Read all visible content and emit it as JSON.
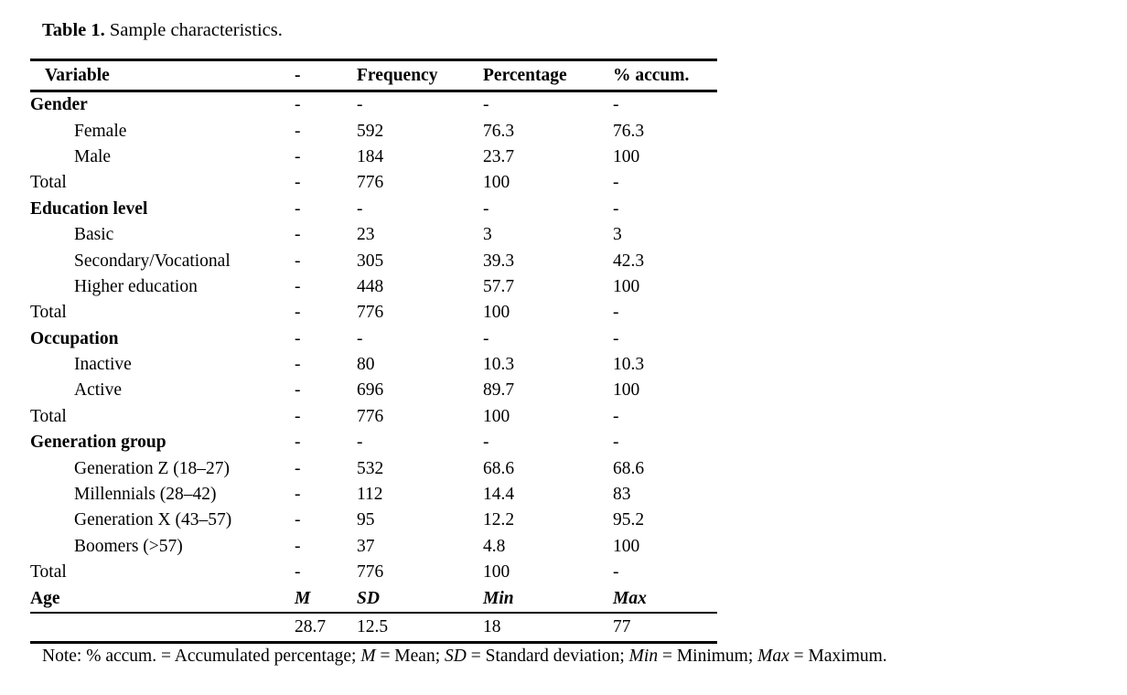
{
  "caption": {
    "label": "Table 1.",
    "text": " Sample characteristics."
  },
  "table": {
    "columns": [
      "Variable",
      "-",
      "Frequency",
      "Percentage",
      "% accum."
    ],
    "rows": [
      {
        "label": "Gender",
        "bold": true,
        "indent": false,
        "cells": [
          "-",
          "-",
          "-",
          "-"
        ]
      },
      {
        "label": "Female",
        "bold": false,
        "indent": true,
        "cells": [
          "-",
          "592",
          "76.3",
          "76.3"
        ]
      },
      {
        "label": "Male",
        "bold": false,
        "indent": true,
        "cells": [
          "-",
          "184",
          "23.7",
          "100"
        ]
      },
      {
        "label": "Total",
        "bold": false,
        "indent": false,
        "cells": [
          "-",
          "776",
          "100",
          "-"
        ]
      },
      {
        "label": "Education level",
        "bold": true,
        "indent": false,
        "cells": [
          "-",
          "-",
          "-",
          "-"
        ]
      },
      {
        "label": "Basic",
        "bold": false,
        "indent": true,
        "cells": [
          "-",
          "23",
          "3",
          "3"
        ]
      },
      {
        "label": "Secondary/Vocational",
        "bold": false,
        "indent": true,
        "cells": [
          "-",
          "305",
          "39.3",
          "42.3"
        ]
      },
      {
        "label": "Higher education",
        "bold": false,
        "indent": true,
        "cells": [
          "-",
          "448",
          "57.7",
          "100"
        ]
      },
      {
        "label": "Total",
        "bold": false,
        "indent": false,
        "cells": [
          "-",
          "776",
          "100",
          "-"
        ]
      },
      {
        "label": "Occupation",
        "bold": true,
        "indent": false,
        "cells": [
          "-",
          "-",
          "-",
          "-"
        ]
      },
      {
        "label": "Inactive",
        "bold": false,
        "indent": true,
        "cells": [
          "-",
          "80",
          "10.3",
          "10.3"
        ]
      },
      {
        "label": "Active",
        "bold": false,
        "indent": true,
        "cells": [
          "-",
          "696",
          "89.7",
          "100"
        ]
      },
      {
        "label": "Total",
        "bold": false,
        "indent": false,
        "cells": [
          "-",
          "776",
          "100",
          "-"
        ]
      },
      {
        "label": "Generation group",
        "bold": true,
        "indent": false,
        "cells": [
          "-",
          "-",
          "-",
          "-"
        ]
      },
      {
        "label": "Generation Z (18–27)",
        "bold": false,
        "indent": true,
        "cells": [
          "-",
          "532",
          "68.6",
          "68.6"
        ]
      },
      {
        "label": "Millennials (28–42)",
        "bold": false,
        "indent": true,
        "cells": [
          "-",
          "112",
          "14.4",
          "83"
        ]
      },
      {
        "label": "Generation X (43–57)",
        "bold": false,
        "indent": true,
        "cells": [
          "-",
          "95",
          "12.2",
          "95.2"
        ]
      },
      {
        "label": "Boomers (>57)",
        "bold": false,
        "indent": true,
        "cells": [
          "-",
          "37",
          "4.8",
          "100"
        ]
      },
      {
        "label": "Total",
        "bold": false,
        "indent": false,
        "cells": [
          "-",
          "776",
          "100",
          "-"
        ]
      },
      {
        "label": "Age",
        "bold": true,
        "indent": false,
        "cells": [
          "M",
          "SD",
          "Min",
          "Max"
        ],
        "cell_style": "stat-header",
        "row_class": "age-row"
      },
      {
        "label": "",
        "bold": false,
        "indent": false,
        "cells": [
          "28.7",
          "12.5",
          "18",
          "77"
        ],
        "row_class": "values-row"
      }
    ]
  },
  "note": {
    "segments": [
      {
        "text": "Note: % accum. = Accumulated percentage; ",
        "italic": false
      },
      {
        "text": "M",
        "italic": true
      },
      {
        "text": " = Mean; ",
        "italic": false
      },
      {
        "text": "SD",
        "italic": true
      },
      {
        "text": " = Standard deviation; ",
        "italic": false
      },
      {
        "text": "Min",
        "italic": true
      },
      {
        "text": " = Minimum; ",
        "italic": false
      },
      {
        "text": "Max",
        "italic": true
      },
      {
        "text": " = Maximum.",
        "italic": false
      }
    ]
  },
  "colors": {
    "text": "#000000",
    "background": "#ffffff",
    "rule": "#000000"
  }
}
